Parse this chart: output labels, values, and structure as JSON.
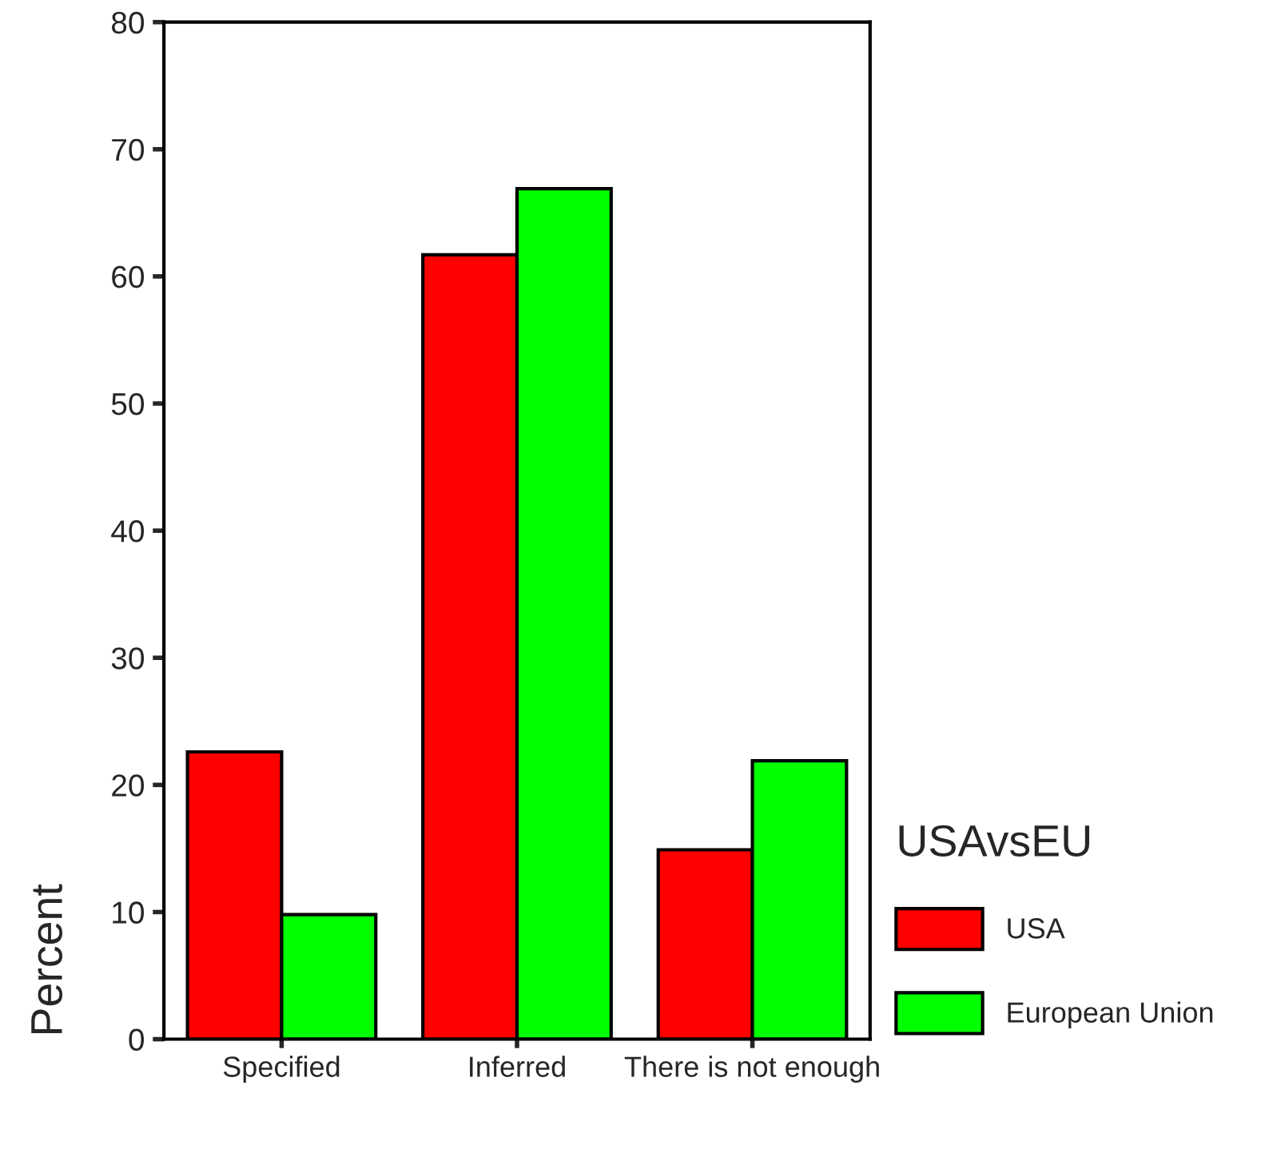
{
  "chart_data": {
    "type": "bar",
    "ylabel": "Percent",
    "legend_title": "USAvsEU",
    "categories": [
      "Specified",
      "Inferred",
      "There is not enough"
    ],
    "series": [
      {
        "name": "USA",
        "color": "#ff0000",
        "values": [
          22.6,
          61.7,
          14.9
        ]
      },
      {
        "name": "European Union",
        "color": "#00ff00",
        "values": [
          9.8,
          66.9,
          21.9
        ]
      }
    ],
    "ylim": [
      0,
      80
    ],
    "yticks": [
      0,
      10,
      20,
      30,
      40,
      50,
      60,
      70,
      80
    ],
    "grid": false,
    "legend": "right"
  }
}
